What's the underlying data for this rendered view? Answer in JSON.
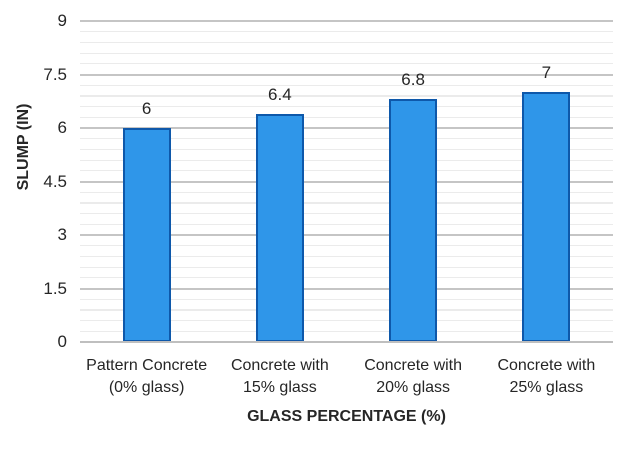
{
  "chart_data": {
    "type": "bar",
    "title": "",
    "categories": [
      "Pattern Concrete (0% glass)",
      "Concrete with 15% glass",
      "Concrete with 20% glass",
      "Concrete with 25% glass"
    ],
    "category_label_lines": [
      [
        "Pattern Concrete",
        "(0% glass)"
      ],
      [
        "Concrete with",
        "15% glass"
      ],
      [
        "Concrete with",
        "20% glass"
      ],
      [
        "Concrete with",
        "25% glass"
      ]
    ],
    "values": [
      6,
      6.4,
      6.8,
      7
    ],
    "data_labels": [
      "6",
      "6.4",
      "6.8",
      "7"
    ],
    "xlabel": "GLASS PERCENTAGE (%)",
    "ylabel": "SLUMP (IN)",
    "ylim": [
      0,
      9
    ],
    "y_major_ticks": [
      0,
      1.5,
      3,
      4.5,
      6,
      7.5,
      9
    ],
    "y_tick_labels": [
      "0",
      "1.5",
      "3",
      "4.5",
      "6",
      "7.5",
      "9"
    ],
    "y_minor_unit": 0.3,
    "grid": "major+minor",
    "legend": "none",
    "colors": {
      "bar_fill": "#2F96E9",
      "bar_border": "#0E58AA",
      "grid_major": "#C5C5C5",
      "grid_minor": "#EBEBEB",
      "axis_line": "#BFBFBF",
      "text": "#262626"
    }
  }
}
